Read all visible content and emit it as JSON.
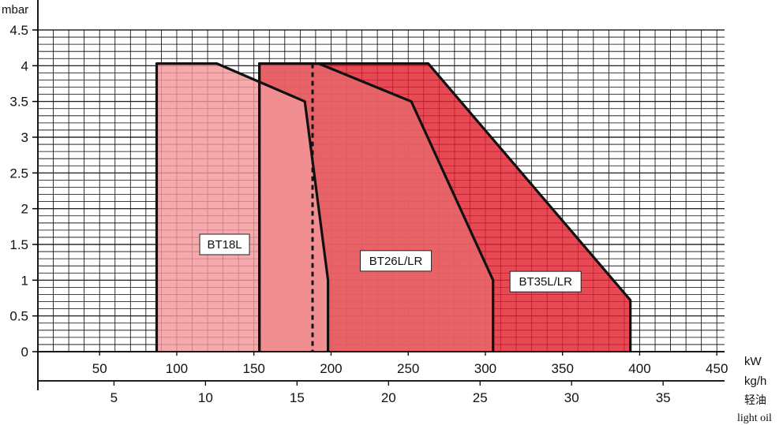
{
  "chart_data": {
    "type": "area",
    "y_unit": "mbar",
    "x_units": {
      "kw": "kW",
      "kgh": "kg/h",
      "fuel_cn": "轻油",
      "fuel_en": "light oil"
    },
    "kw_axis": {
      "ticks": [
        50,
        100,
        150,
        200,
        250,
        300,
        350,
        400,
        450
      ]
    },
    "kgh_axis": {
      "ticks": [
        5,
        10,
        15,
        20,
        25,
        30,
        35
      ]
    },
    "y_axis": {
      "ticks": [
        "0",
        "0.5",
        "1",
        "1.5",
        "2",
        "2.5",
        "3",
        "3.5",
        "4",
        "4.5"
      ],
      "ylim": [
        0,
        4.5
      ]
    },
    "xlim_kw": [
      10,
      455
    ],
    "kgh_per_kw": 0.0843,
    "grid": true,
    "series": [
      {
        "name": "BT35L/LR",
        "color": "#e3222f",
        "points": [
          [
            153.5,
            0
          ],
          [
            153.5,
            4.03
          ],
          [
            263,
            4.03
          ],
          [
            394,
            0.72
          ],
          [
            394,
            0
          ]
        ]
      },
      {
        "name": "BT26L/LR",
        "color": "#e8696b",
        "points": [
          [
            153.5,
            0
          ],
          [
            153.5,
            4.03
          ],
          [
            192,
            4.03
          ],
          [
            252,
            3.5
          ],
          [
            305,
            1.0
          ],
          [
            305,
            0
          ]
        ]
      },
      {
        "name": "BT18L",
        "color": "#f3979b",
        "points": [
          [
            87,
            0
          ],
          [
            87,
            4.03
          ],
          [
            126,
            4.03
          ],
          [
            183,
            3.5
          ],
          [
            198,
            1.0
          ],
          [
            198,
            0
          ]
        ]
      }
    ],
    "dashed_lines_kw": [
      153.5,
      188
    ]
  }
}
